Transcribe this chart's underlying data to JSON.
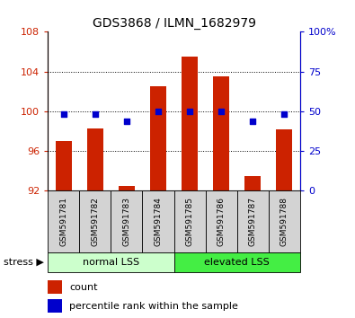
{
  "title": "GDS3868 / ILMN_1682979",
  "samples": [
    "GSM591781",
    "GSM591782",
    "GSM591783",
    "GSM591784",
    "GSM591785",
    "GSM591786",
    "GSM591787",
    "GSM591788"
  ],
  "bar_bottoms": [
    92,
    92,
    92,
    92,
    92,
    92,
    92,
    92
  ],
  "bar_tops": [
    97.0,
    98.3,
    92.5,
    102.5,
    105.5,
    103.5,
    93.5,
    98.2
  ],
  "pct_ranks": [
    48,
    48,
    44,
    50,
    50,
    50,
    44,
    48
  ],
  "ylim_left": [
    92,
    108
  ],
  "ylim_right": [
    0,
    100
  ],
  "yticks_left": [
    92,
    96,
    100,
    104,
    108
  ],
  "yticks_right": [
    0,
    25,
    50,
    75,
    100
  ],
  "bar_color": "#cc2200",
  "dot_color": "#0000cc",
  "grid_color": "#000000",
  "group1_label": "normal LSS",
  "group2_label": "elevated LSS",
  "group1_color": "#ccffcc",
  "group2_color": "#44ee44",
  "stress_label": "stress ▶",
  "legend_count": "count",
  "legend_pct": "percentile rank within the sample",
  "left_axis_color": "#cc2200",
  "right_axis_color": "#0000cc",
  "bg_color": "#ffffff",
  "label_box_color": "#d3d3d3",
  "gridline_ticks": [
    96,
    100,
    104
  ],
  "bar_width": 0.5
}
